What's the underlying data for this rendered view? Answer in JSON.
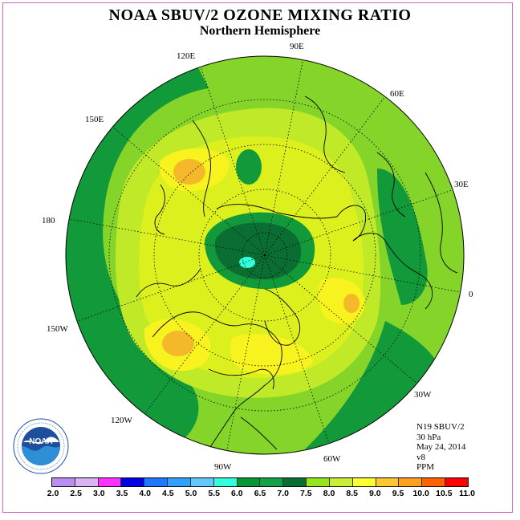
{
  "title": "NOAA SBUV/2 OZONE MIXING RATIO",
  "subtitle": "Northern Hemisphere",
  "info": {
    "instrument": "N19 SBUV/2",
    "level": "30 hPa",
    "date": "May 24, 2014",
    "version": "v8",
    "units": "PPM"
  },
  "logo": {
    "text": "NOAA",
    "ring_text": "NATIONAL OCEANIC AND ATMOSPHERIC ADMINISTRATION · U.S. DEPARTMENT OF COMMERCE"
  },
  "longitude_labels": [
    "90E",
    "60E",
    "30E",
    "0",
    "30W",
    "60W",
    "90W",
    "120W",
    "150W",
    "180",
    "150E",
    "120E"
  ],
  "colorbar": {
    "ticks": [
      "2.0",
      "2.5",
      "3.0",
      "3.5",
      "4.0",
      "4.5",
      "5.0",
      "5.5",
      "6.0",
      "6.5",
      "7.0",
      "7.5",
      "8.0",
      "8.5",
      "9.0",
      "9.5",
      "10.0",
      "10.5",
      "11.0"
    ],
    "colors": [
      "#b88ef0",
      "#dcb4f5",
      "#ff32ff",
      "#0000e6",
      "#1e78ff",
      "#32a0ff",
      "#64c8ff",
      "#32ffdc",
      "#0a9632",
      "#14a046",
      "#0a6e32",
      "#96e61e",
      "#c8f032",
      "#ffff32",
      "#ffc832",
      "#ffa01e",
      "#ff6400",
      "#ff0000",
      "#a0522d"
    ]
  },
  "field_colors": {
    "band_outer": "#84d42a",
    "dark_green": "#129a3a",
    "deep_green": "#0a6e32",
    "lime": "#c0ea28",
    "yellow_green": "#dcf01e",
    "yellow": "#f8f31e",
    "orange": "#f5b82a",
    "cyan": "#32ffdc"
  }
}
